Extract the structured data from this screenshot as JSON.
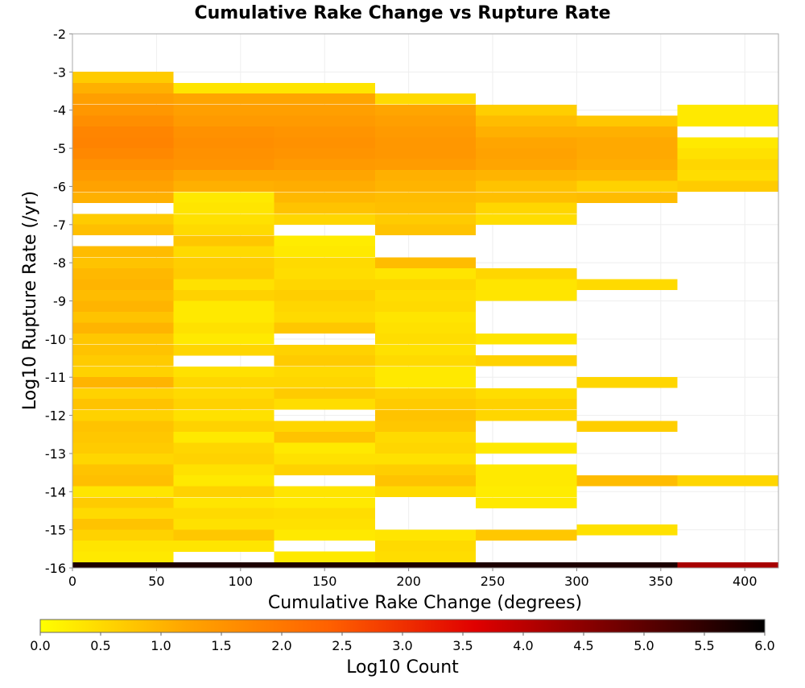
{
  "chart_data": {
    "type": "heatmap",
    "title": "Cumulative Rake Change vs Rupture Rate",
    "xlabel": "Cumulative Rake Change (degrees)",
    "ylabel": "Log10 Rupture Rate (/yr)",
    "xlim": [
      0,
      420
    ],
    "ylim": [
      -16,
      -2
    ],
    "x_ticks": [
      "0",
      "50",
      "100",
      "150",
      "200",
      "250",
      "300",
      "350",
      "400"
    ],
    "y_ticks": [
      "-2",
      "-3",
      "-4",
      "-5",
      "-6",
      "-7",
      "-8",
      "-9",
      "-10",
      "-11",
      "-12",
      "-13",
      "-14",
      "-15",
      "-16"
    ],
    "grid": true,
    "x_bin_width": 60,
    "y_bin_height": 0.2857,
    "colorbar": {
      "label": "Log10 Count",
      "min": 0.0,
      "max": 6.0,
      "ticks": [
        "0.0",
        "0.5",
        "1.0",
        "1.5",
        "2.0",
        "2.5",
        "3.0",
        "3.5",
        "4.0",
        "4.5",
        "5.0",
        "5.5",
        "6.0"
      ],
      "stops": [
        "#ffff00",
        "#ffa500",
        "#ff6000",
        "#e00000",
        "#700000",
        "#000000"
      ]
    },
    "columns": [
      {
        "x": 0,
        "cells": [
          [
            -3.14,
            0.7
          ],
          [
            -3.43,
            1.05
          ],
          [
            -3.71,
            1.3
          ],
          [
            -4.0,
            1.45
          ],
          [
            -4.29,
            1.6
          ],
          [
            -4.57,
            1.75
          ],
          [
            -4.86,
            1.8
          ],
          [
            -5.14,
            1.7
          ],
          [
            -5.43,
            1.55
          ],
          [
            -5.71,
            1.4
          ],
          [
            -6.0,
            1.25
          ],
          [
            -6.29,
            1.05
          ],
          [
            -6.86,
            0.7
          ],
          [
            -7.14,
            0.85
          ],
          [
            -7.71,
            0.9
          ],
          [
            -8.0,
            0.8
          ],
          [
            -8.29,
            0.95
          ],
          [
            -8.57,
            1.0
          ],
          [
            -8.86,
            0.9
          ],
          [
            -9.14,
            1.0
          ],
          [
            -9.43,
            0.8
          ],
          [
            -9.71,
            1.0
          ],
          [
            -10.0,
            0.75
          ],
          [
            -10.29,
            0.8
          ],
          [
            -10.57,
            0.7
          ],
          [
            -10.86,
            0.6
          ],
          [
            -11.14,
            1.0
          ],
          [
            -11.43,
            0.6
          ],
          [
            -11.71,
            0.8
          ],
          [
            -12.0,
            0.6
          ],
          [
            -12.29,
            0.8
          ],
          [
            -12.57,
            0.75
          ],
          [
            -12.86,
            0.7
          ],
          [
            -13.14,
            0.55
          ],
          [
            -13.43,
            0.8
          ],
          [
            -13.71,
            0.85
          ],
          [
            -14.0,
            0.35
          ],
          [
            -14.29,
            0.7
          ],
          [
            -14.57,
            0.5
          ],
          [
            -14.86,
            0.8
          ],
          [
            -15.14,
            0.6
          ],
          [
            -15.43,
            0.35
          ],
          [
            -15.71,
            0.3
          ],
          [
            -16.0,
            5.7
          ]
        ]
      },
      {
        "x": 60,
        "cells": [
          [
            -3.43,
            0.35
          ],
          [
            -3.71,
            1.2
          ],
          [
            -4.0,
            1.3
          ],
          [
            -4.29,
            1.4
          ],
          [
            -4.57,
            1.55
          ],
          [
            -4.86,
            1.6
          ],
          [
            -5.14,
            1.55
          ],
          [
            -5.43,
            1.5
          ],
          [
            -5.71,
            1.2
          ],
          [
            -6.0,
            1.05
          ],
          [
            -6.29,
            0.3
          ],
          [
            -6.57,
            0.35
          ],
          [
            -6.86,
            0.4
          ],
          [
            -7.14,
            0.5
          ],
          [
            -7.43,
            0.75
          ],
          [
            -7.71,
            0.5
          ],
          [
            -8.0,
            0.65
          ],
          [
            -8.29,
            0.7
          ],
          [
            -8.57,
            0.4
          ],
          [
            -8.86,
            0.6
          ],
          [
            -9.14,
            0.3
          ],
          [
            -9.43,
            0.3
          ],
          [
            -9.71,
            0.4
          ],
          [
            -10.0,
            0.3
          ],
          [
            -10.29,
            0.55
          ],
          [
            -10.86,
            0.4
          ],
          [
            -11.14,
            0.55
          ],
          [
            -11.43,
            0.5
          ],
          [
            -11.71,
            0.6
          ],
          [
            -12.0,
            0.4
          ],
          [
            -12.29,
            0.6
          ],
          [
            -12.57,
            0.3
          ],
          [
            -12.86,
            0.55
          ],
          [
            -13.14,
            0.6
          ],
          [
            -13.43,
            0.4
          ],
          [
            -13.71,
            0.3
          ],
          [
            -14.0,
            0.6
          ],
          [
            -14.29,
            0.35
          ],
          [
            -14.57,
            0.5
          ],
          [
            -14.86,
            0.4
          ],
          [
            -15.14,
            0.75
          ],
          [
            -15.43,
            0.35
          ],
          [
            -16.0,
            5.7
          ]
        ]
      },
      {
        "x": 120,
        "cells": [
          [
            -3.43,
            0.35
          ],
          [
            -3.71,
            1.2
          ],
          [
            -4.0,
            1.3
          ],
          [
            -4.29,
            1.4
          ],
          [
            -4.57,
            1.5
          ],
          [
            -4.86,
            1.55
          ],
          [
            -5.14,
            1.5
          ],
          [
            -5.43,
            1.4
          ],
          [
            -5.71,
            1.2
          ],
          [
            -6.0,
            1.1
          ],
          [
            -6.29,
            0.95
          ],
          [
            -6.57,
            0.8
          ],
          [
            -6.86,
            0.55
          ],
          [
            -7.43,
            0.25
          ],
          [
            -7.71,
            0.3
          ],
          [
            -8.0,
            0.5
          ],
          [
            -8.29,
            0.45
          ],
          [
            -8.57,
            0.55
          ],
          [
            -8.86,
            0.65
          ],
          [
            -9.14,
            0.55
          ],
          [
            -9.43,
            0.5
          ],
          [
            -9.71,
            0.75
          ],
          [
            -10.29,
            0.6
          ],
          [
            -10.57,
            0.7
          ],
          [
            -10.86,
            0.5
          ],
          [
            -11.14,
            0.55
          ],
          [
            -11.43,
            0.7
          ],
          [
            -11.71,
            0.45
          ],
          [
            -12.29,
            0.55
          ],
          [
            -12.57,
            0.8
          ],
          [
            -12.86,
            0.3
          ],
          [
            -13.14,
            0.4
          ],
          [
            -13.43,
            0.6
          ],
          [
            -14.0,
            0.35
          ],
          [
            -14.29,
            0.3
          ],
          [
            -14.57,
            0.45
          ],
          [
            -14.86,
            0.4
          ],
          [
            -15.14,
            0.3
          ],
          [
            -15.71,
            0.3
          ],
          [
            -16.0,
            5.7
          ]
        ]
      },
      {
        "x": 180,
        "cells": [
          [
            -3.71,
            0.5
          ],
          [
            -4.0,
            1.2
          ],
          [
            -4.29,
            1.3
          ],
          [
            -4.57,
            1.4
          ],
          [
            -4.86,
            1.45
          ],
          [
            -5.14,
            1.45
          ],
          [
            -5.43,
            1.35
          ],
          [
            -5.71,
            1.05
          ],
          [
            -6.0,
            1.0
          ],
          [
            -6.29,
            0.9
          ],
          [
            -6.57,
            0.85
          ],
          [
            -6.86,
            0.7
          ],
          [
            -7.14,
            0.8
          ],
          [
            -8.0,
            0.9
          ],
          [
            -8.29,
            0.35
          ],
          [
            -8.57,
            0.55
          ],
          [
            -8.86,
            0.45
          ],
          [
            -9.14,
            0.5
          ],
          [
            -9.43,
            0.35
          ],
          [
            -9.71,
            0.4
          ],
          [
            -10.0,
            0.45
          ],
          [
            -10.29,
            0.4
          ],
          [
            -10.57,
            0.5
          ],
          [
            -10.86,
            0.3
          ],
          [
            -11.14,
            0.3
          ],
          [
            -11.43,
            0.6
          ],
          [
            -11.71,
            0.7
          ],
          [
            -12.0,
            0.8
          ],
          [
            -12.29,
            0.75
          ],
          [
            -12.57,
            0.5
          ],
          [
            -12.86,
            0.55
          ],
          [
            -13.14,
            0.4
          ],
          [
            -13.43,
            0.65
          ],
          [
            -13.71,
            0.8
          ],
          [
            -14.0,
            0.5
          ],
          [
            -15.14,
            0.35
          ],
          [
            -15.43,
            0.5
          ],
          [
            -15.71,
            0.45
          ],
          [
            -16.0,
            5.7
          ]
        ]
      },
      {
        "x": 240,
        "cells": [
          [
            -4.0,
            0.65
          ],
          [
            -4.29,
            0.9
          ],
          [
            -4.57,
            1.05
          ],
          [
            -4.86,
            1.2
          ],
          [
            -5.14,
            1.25
          ],
          [
            -5.43,
            1.2
          ],
          [
            -5.71,
            1.0
          ],
          [
            -6.0,
            0.8
          ],
          [
            -6.29,
            0.85
          ],
          [
            -6.57,
            0.55
          ],
          [
            -6.86,
            0.45
          ],
          [
            -8.29,
            0.55
          ],
          [
            -8.57,
            0.35
          ],
          [
            -8.86,
            0.35
          ],
          [
            -10.0,
            0.35
          ],
          [
            -10.57,
            0.6
          ],
          [
            -11.43,
            0.45
          ],
          [
            -11.71,
            0.6
          ],
          [
            -12.0,
            0.55
          ],
          [
            -12.86,
            0.3
          ],
          [
            -13.43,
            0.3
          ],
          [
            -13.71,
            0.3
          ],
          [
            -14.0,
            0.25
          ],
          [
            -14.29,
            0.3
          ],
          [
            -15.14,
            0.75
          ],
          [
            -16.0,
            5.7
          ]
        ]
      },
      {
        "x": 300,
        "cells": [
          [
            -4.29,
            0.75
          ],
          [
            -4.57,
            1.05
          ],
          [
            -4.86,
            1.15
          ],
          [
            -5.14,
            1.15
          ],
          [
            -5.43,
            1.1
          ],
          [
            -5.71,
            0.95
          ],
          [
            -6.0,
            0.6
          ],
          [
            -6.29,
            0.9
          ],
          [
            -8.57,
            0.5
          ],
          [
            -11.14,
            0.55
          ],
          [
            -12.29,
            0.65
          ],
          [
            -13.71,
            0.9
          ],
          [
            -15.0,
            0.4
          ],
          [
            -16.0,
            5.7
          ]
        ]
      },
      {
        "x": 360,
        "cells": [
          [
            -4.0,
            0.3
          ],
          [
            -4.29,
            0.3
          ],
          [
            -4.86,
            0.3
          ],
          [
            -5.14,
            0.4
          ],
          [
            -5.43,
            0.55
          ],
          [
            -5.71,
            0.45
          ],
          [
            -6.0,
            0.7
          ],
          [
            -13.71,
            0.55
          ],
          [
            -16.0,
            4.2
          ]
        ]
      }
    ]
  }
}
